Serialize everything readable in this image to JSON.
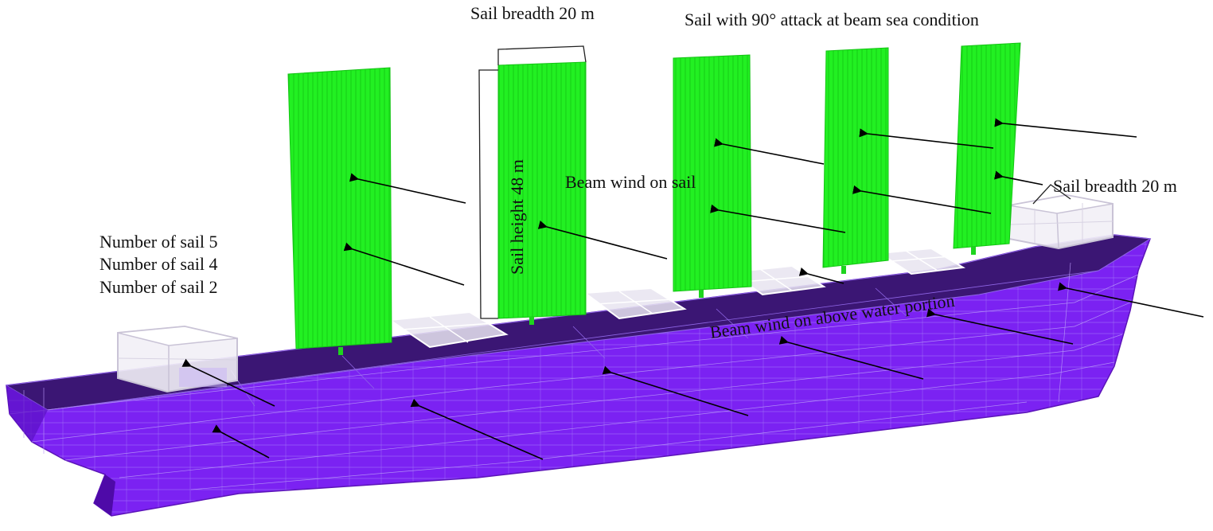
{
  "labels": {
    "sail_breadth_top": "Sail breadth 20 m",
    "sail_attack": "Sail with 90° attack at beam sea condition",
    "sail_breadth_right": "Sail breadth 20 m",
    "sail_height": "Sail height 48 m",
    "beam_wind_sail": "Beam wind on sail",
    "sail_count_5": "Number of sail 5",
    "sail_count_4": "Number of sail 4",
    "sail_count_2": "Number of sail 2",
    "beam_wind_hull": "Beam wind on above water portion"
  },
  "colors": {
    "hull": "#7a1df5",
    "hull_dark": "#4e0aa8",
    "deck": "#3a1670",
    "sail": "#1ff01f",
    "sail_line": "#12b812",
    "arrow": "#000000"
  }
}
